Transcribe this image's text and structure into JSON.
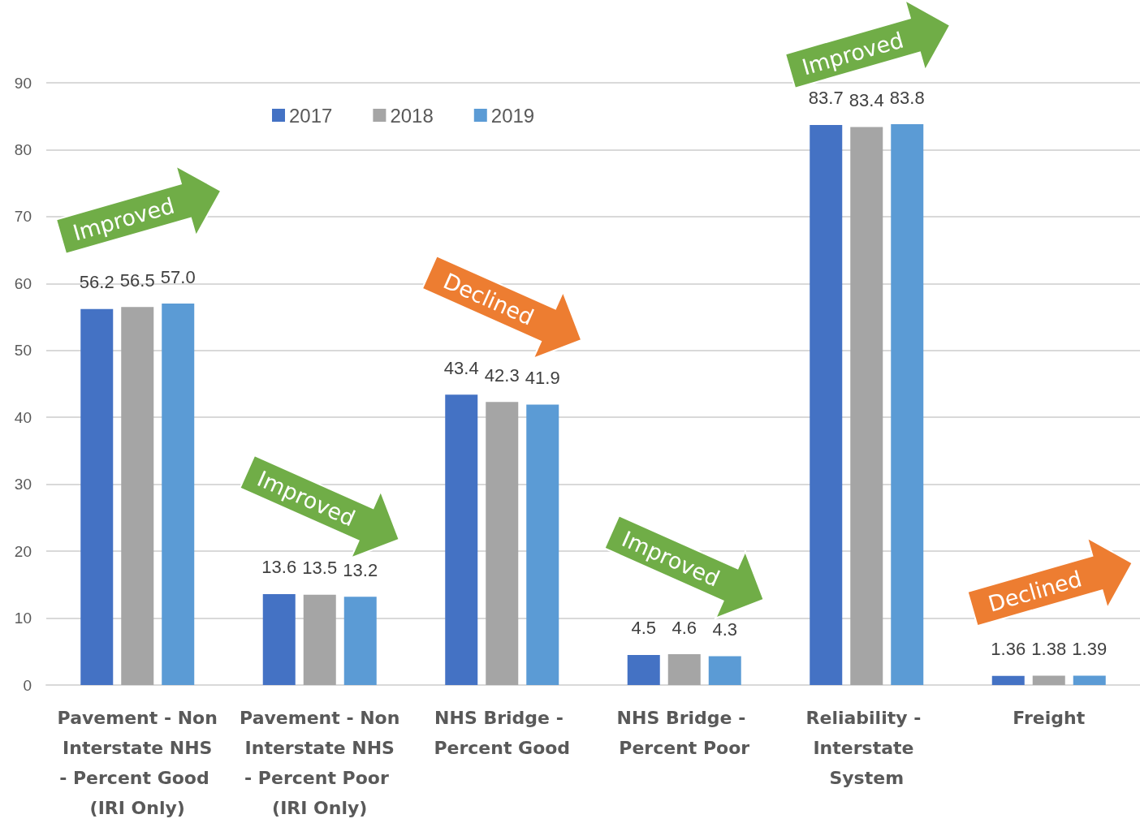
{
  "chart_data": {
    "type": "bar",
    "categories": [
      "Pavement - Non Interstate NHS - Percent Good (IRI Only)",
      "Pavement - Non Interstate NHS - Percent Poor (IRI Only)",
      "NHS Bridge - Percent Good",
      "NHS Bridge - Percent Poor",
      "Reliability - Interstate System",
      "Freight"
    ],
    "series": [
      {
        "name": "2017",
        "color": "#4472c4",
        "values": [
          56.2,
          13.6,
          43.4,
          4.5,
          83.7,
          1.36
        ],
        "value_labels": [
          "56.2",
          "13.6",
          "43.4",
          "4.5",
          "83.7",
          "1.36"
        ]
      },
      {
        "name": "2018",
        "color": "#a5a5a5",
        "values": [
          56.5,
          13.5,
          42.3,
          4.6,
          83.4,
          1.38
        ],
        "value_labels": [
          "56.5",
          "13.5",
          "42.3",
          "4.6",
          "83.4",
          "1.38"
        ]
      },
      {
        "name": "2019",
        "color": "#5b9bd5",
        "values": [
          57.0,
          13.2,
          41.9,
          4.3,
          83.8,
          1.39
        ],
        "value_labels": [
          "57.0",
          "13.2",
          "41.9",
          "4.3",
          "83.8",
          "1.39"
        ]
      }
    ],
    "ylim": [
      0,
      90
    ],
    "yticks": [
      0,
      10,
      20,
      30,
      40,
      50,
      60,
      70,
      80,
      90
    ],
    "grid": "y",
    "legend": "top",
    "annotations": [
      "Improved",
      "Improved",
      "Declined",
      "Improved",
      "Improved",
      "Declined"
    ]
  }
}
